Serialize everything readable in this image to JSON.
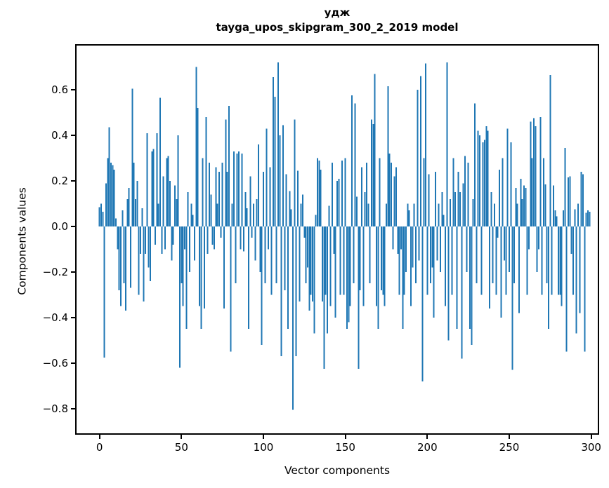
{
  "figure": {
    "background": "#ffffff",
    "spine_color": "#000000",
    "tick_color": "#000000"
  },
  "chart_data": {
    "type": "bar",
    "title_line1": "удж",
    "title_line2": "tayga_upos_skipgram_300_2_2019 model",
    "xlabel": "Vector components",
    "ylabel": "Components values",
    "bar_color": "#1f77b4",
    "grid": false,
    "legend": "none",
    "x_ticks": [
      0,
      50,
      100,
      150,
      200,
      250,
      300
    ],
    "y_ticks": [
      0.6,
      0.4,
      0.2,
      0.0,
      -0.2,
      -0.4,
      -0.6,
      -0.8
    ],
    "xlim": [
      -14,
      304
    ],
    "ylim": [
      -0.908,
      0.794
    ],
    "n_components": 300,
    "values": [
      0.085,
      0.1,
      0.065,
      -0.575,
      0.19,
      0.3,
      0.435,
      0.28,
      0.27,
      0.25,
      0.035,
      -0.1,
      -0.28,
      -0.35,
      0.07,
      -0.25,
      -0.37,
      0.12,
      0.17,
      -0.27,
      0.605,
      0.28,
      0.12,
      0.2,
      -0.3,
      -0.12,
      0.08,
      -0.33,
      -0.12,
      0.41,
      -0.18,
      -0.24,
      0.33,
      0.34,
      -0.08,
      0.41,
      0.1,
      0.565,
      -0.12,
      0.22,
      -0.1,
      0.3,
      0.31,
      0.2,
      -0.15,
      -0.08,
      0.18,
      0.12,
      0.4,
      -0.62,
      -0.25,
      -0.35,
      -0.1,
      -0.45,
      0.15,
      -0.2,
      0.1,
      0.05,
      -0.15,
      0.7,
      0.52,
      -0.35,
      -0.45,
      0.3,
      -0.36,
      0.48,
      -0.12,
      0.28,
      0.14,
      -0.08,
      -0.1,
      0.26,
      0.1,
      0.24,
      -0.05,
      0.28,
      -0.36,
      0.47,
      0.24,
      0.53,
      -0.55,
      0.1,
      0.33,
      -0.25,
      0.32,
      0.33,
      -0.1,
      0.32,
      -0.11,
      0.15,
      0.08,
      -0.45,
      0.22,
      -0.05,
      0.1,
      -0.15,
      0.12,
      0.36,
      -0.2,
      -0.52,
      0.24,
      -0.25,
      0.43,
      -0.1,
      0.26,
      -0.3,
      0.655,
      0.57,
      -0.25,
      0.72,
      0.4,
      -0.57,
      0.445,
      -0.28,
      0.23,
      -0.45,
      0.155,
      0.075,
      -0.805,
      0.47,
      -0.57,
      0.245,
      -0.33,
      0.1,
      0.14,
      -0.05,
      -0.25,
      -0.18,
      -0.37,
      -0.3,
      -0.33,
      -0.47,
      0.05,
      0.3,
      0.29,
      0.25,
      -0.33,
      -0.625,
      -0.3,
      -0.47,
      0.09,
      -0.35,
      0.28,
      -0.12,
      -0.4,
      0.2,
      0.21,
      -0.3,
      0.29,
      -0.3,
      0.3,
      -0.45,
      -0.42,
      -0.35,
      0.575,
      -0.25,
      0.54,
      0.13,
      -0.625,
      -0.28,
      0.26,
      -0.35,
      0.15,
      0.28,
      0.1,
      -0.25,
      0.47,
      0.45,
      0.67,
      -0.35,
      -0.45,
      0.3,
      -0.28,
      -0.3,
      -0.35,
      0.1,
      0.615,
      0.32,
      0.28,
      -0.1,
      0.22,
      0.26,
      -0.12,
      -0.3,
      -0.1,
      -0.45,
      -0.3,
      -0.2,
      0.1,
      0.07,
      -0.35,
      -0.18,
      0.1,
      -0.25,
      0.6,
      -0.15,
      0.66,
      -0.68,
      0.3,
      0.715,
      -0.3,
      0.23,
      -0.25,
      -0.18,
      -0.4,
      0.24,
      -0.15,
      0.1,
      -0.2,
      0.15,
      0.05,
      -0.35,
      0.72,
      -0.5,
      0.12,
      -0.3,
      0.3,
      0.15,
      -0.45,
      0.24,
      0.15,
      -0.58,
      0.19,
      0.31,
      -0.2,
      0.28,
      -0.45,
      -0.52,
      0.12,
      0.54,
      -0.25,
      0.42,
      0.4,
      -0.3,
      0.37,
      0.38,
      0.44,
      0.42,
      -0.36,
      0.15,
      -0.25,
      0.1,
      -0.3,
      -0.05,
      0.25,
      -0.4,
      0.3,
      -0.15,
      -0.3,
      0.43,
      -0.2,
      0.37,
      -0.63,
      -0.25,
      0.17,
      0.1,
      -0.38,
      0.21,
      0.12,
      0.18,
      0.17,
      -0.3,
      -0.1,
      0.46,
      0.3,
      0.475,
      0.44,
      -0.2,
      -0.1,
      0.48,
      -0.3,
      0.3,
      0.185,
      -0.25,
      -0.45,
      0.665,
      -0.3,
      0.18,
      0.07,
      0.045,
      -0.3,
      -0.3,
      -0.35,
      0.07,
      0.345,
      -0.55,
      0.215,
      0.22,
      -0.12,
      -0.3,
      0.075,
      -0.47,
      0.1,
      -0.38,
      0.24,
      0.23,
      -0.55,
      0.06,
      0.07,
      0.065
    ]
  }
}
